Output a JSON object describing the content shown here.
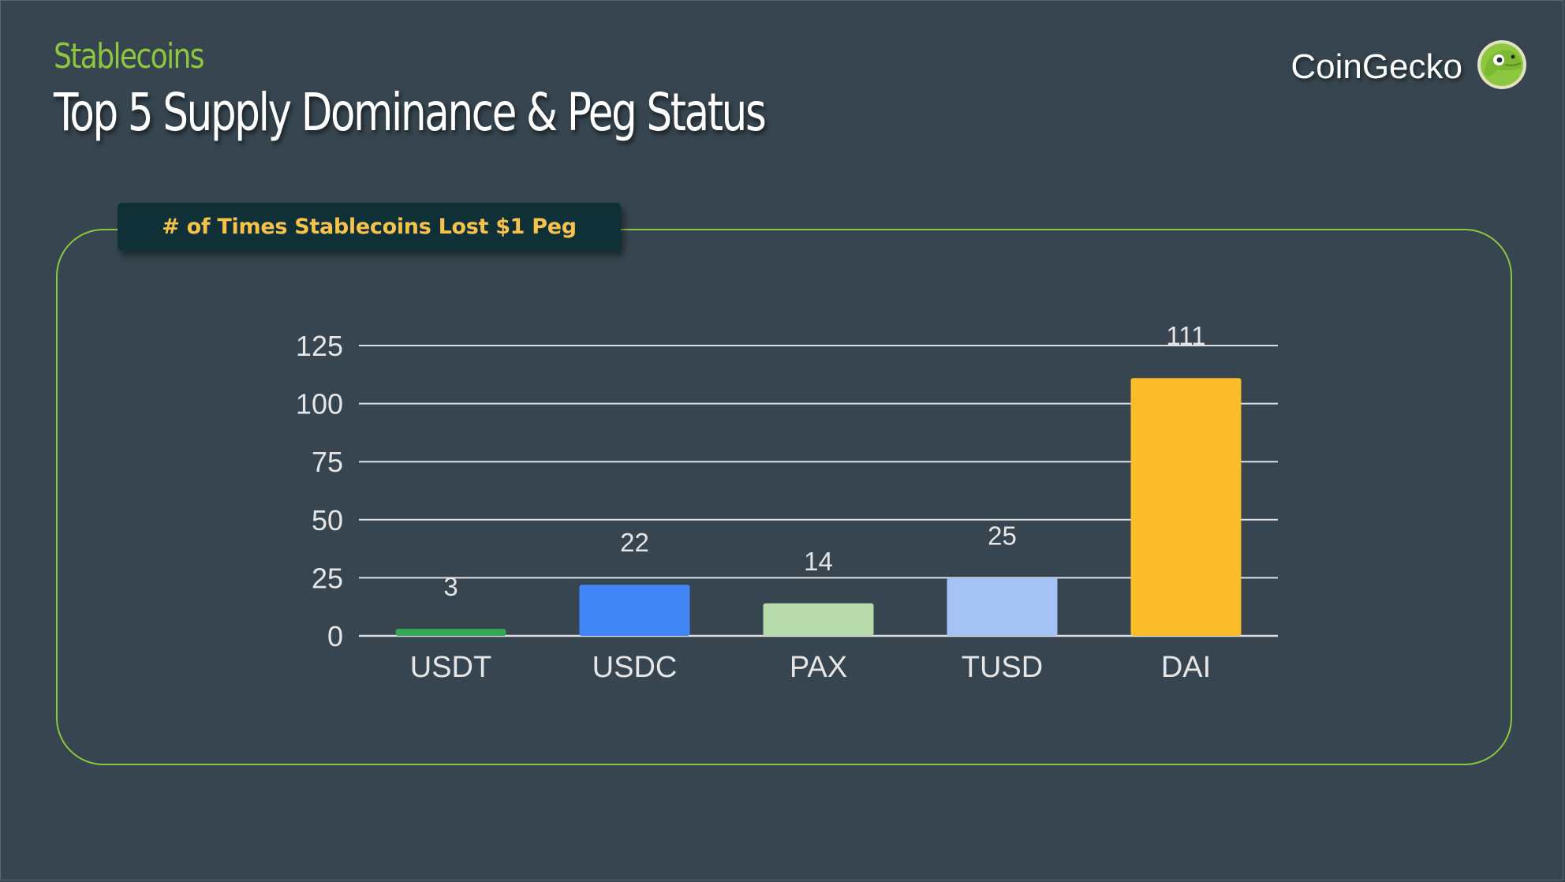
{
  "header": {
    "eyebrow": "Stablecoins",
    "title": "Top 5 Supply Dominance & Peg Status"
  },
  "brand": {
    "name": "CoinGecko",
    "logo_icon": "gecko-logo-icon"
  },
  "colors": {
    "background": "#36454f",
    "accent_green": "#8dc63f",
    "tab_background": "#103038",
    "tab_text": "#f6c24a",
    "gridline": "#e0e0e0"
  },
  "chart_data": {
    "type": "bar",
    "title": "# of Times Stablecoins Lost $1 Peg",
    "categories": [
      "USDT",
      "USDC",
      "PAX",
      "TUSD",
      "DAI"
    ],
    "values": [
      3,
      22,
      14,
      25,
      111
    ],
    "bar_colors": [
      "#34a853",
      "#4285f4",
      "#b7dbaa",
      "#a4c2f4",
      "#fbbc2a"
    ],
    "data_labels": [
      "3",
      "22",
      "14",
      "25",
      "111"
    ],
    "yticks": [
      0,
      25,
      50,
      75,
      100,
      125
    ],
    "ylim": [
      0,
      125
    ],
    "grid": true,
    "legend": "none",
    "xlabel": "",
    "ylabel": ""
  }
}
